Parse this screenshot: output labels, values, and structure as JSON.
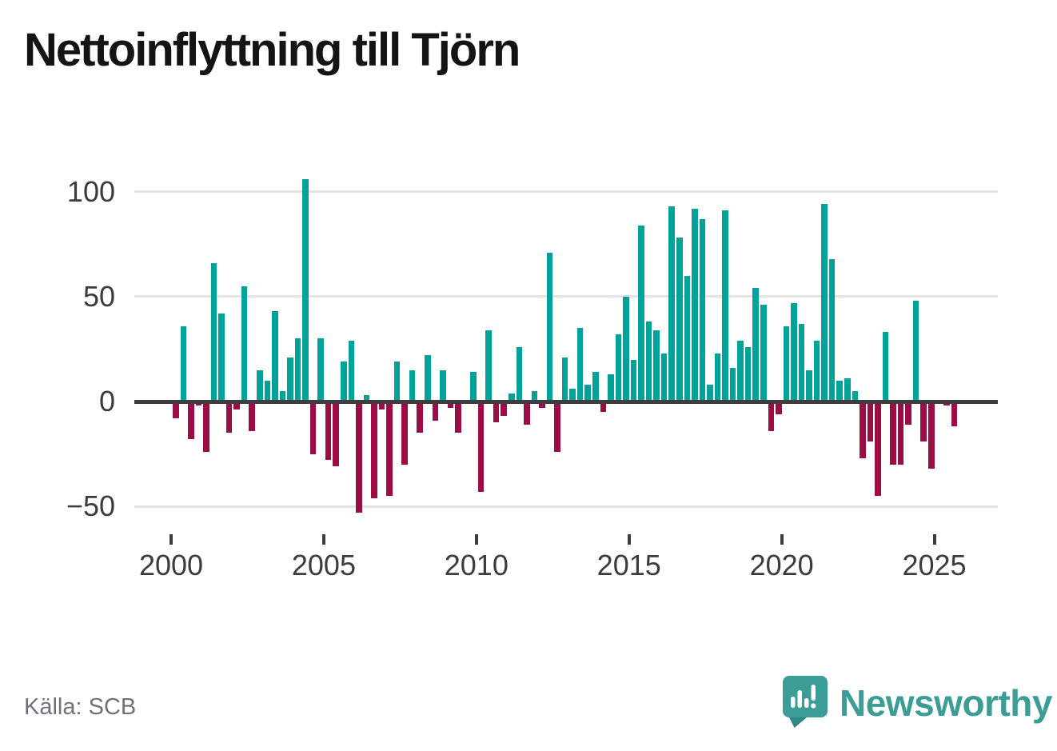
{
  "title": "Nettoinflyttning till Tjörn",
  "source": "Källa: SCB",
  "brand": {
    "name": "Newsworthy",
    "color": "#3c9d97"
  },
  "colors": {
    "positive_bar": "#00a29a",
    "negative_bar": "#9c0d46",
    "gridline": "#e3e3e3",
    "zero_line": "#3d3d3d",
    "axis_text": "#3c3c3c",
    "title_text": "#141414",
    "source_text": "#70707a"
  },
  "chart_data": {
    "type": "bar",
    "title": "Nettoinflyttning till Tjörn",
    "xlabel": "",
    "ylabel": "",
    "x_unit": "quarter",
    "grid": "horizontal",
    "legend": "none",
    "ylim": [
      -60,
      110
    ],
    "yticks": [
      {
        "label": "100",
        "value": 100
      },
      {
        "label": "50",
        "value": 50
      },
      {
        "label": "0",
        "value": 0
      },
      {
        "label": "−50",
        "value": -50
      }
    ],
    "xticks": [
      {
        "label": "2000",
        "year": 2000
      },
      {
        "label": "2005",
        "year": 2005
      },
      {
        "label": "2010",
        "year": 2010
      },
      {
        "label": "2015",
        "year": 2015
      },
      {
        "label": "2020",
        "year": 2020
      },
      {
        "label": "2025",
        "year": 2025
      }
    ],
    "categories": [
      "2000Q1",
      "2000Q2",
      "2000Q3",
      "2000Q4",
      "2001Q1",
      "2001Q2",
      "2001Q3",
      "2001Q4",
      "2002Q1",
      "2002Q2",
      "2002Q3",
      "2002Q4",
      "2003Q1",
      "2003Q2",
      "2003Q3",
      "2003Q4",
      "2004Q1",
      "2004Q2",
      "2004Q3",
      "2004Q4",
      "2005Q1",
      "2005Q2",
      "2005Q3",
      "2005Q4",
      "2006Q1",
      "2006Q2",
      "2006Q3",
      "2006Q4",
      "2007Q1",
      "2007Q2",
      "2007Q3",
      "2007Q4",
      "2008Q1",
      "2008Q2",
      "2008Q3",
      "2008Q4",
      "2009Q1",
      "2009Q2",
      "2009Q3",
      "2009Q4",
      "2010Q1",
      "2010Q2",
      "2010Q3",
      "2010Q4",
      "2011Q1",
      "2011Q2",
      "2011Q3",
      "2011Q4",
      "2012Q1",
      "2012Q2",
      "2012Q3",
      "2012Q4",
      "2013Q1",
      "2013Q2",
      "2013Q3",
      "2013Q4",
      "2014Q1",
      "2014Q2",
      "2014Q3",
      "2014Q4",
      "2015Q1",
      "2015Q2",
      "2015Q3",
      "2015Q4",
      "2016Q1",
      "2016Q2",
      "2016Q3",
      "2016Q4",
      "2017Q1",
      "2017Q2",
      "2017Q3",
      "2017Q4",
      "2018Q1",
      "2018Q2",
      "2018Q3",
      "2018Q4",
      "2019Q1",
      "2019Q2",
      "2019Q3",
      "2019Q4",
      "2020Q1",
      "2020Q2",
      "2020Q3",
      "2020Q4",
      "2021Q1",
      "2021Q2",
      "2021Q3",
      "2021Q4",
      "2022Q1",
      "2022Q2",
      "2022Q3",
      "2022Q4",
      "2023Q1",
      "2023Q2",
      "2023Q3",
      "2023Q4",
      "2024Q1",
      "2024Q2",
      "2024Q3",
      "2024Q4",
      "2025Q1",
      "2025Q2",
      "2025Q3"
    ],
    "values": [
      -8,
      36,
      -18,
      -2,
      -24,
      66,
      42,
      -15,
      -4,
      55,
      -14,
      15,
      10,
      43,
      5,
      21,
      30,
      106,
      -25,
      30,
      -28,
      -31,
      19,
      29,
      -53,
      3,
      -46,
      -4,
      -45,
      19,
      -30,
      15,
      -15,
      22,
      -9,
      15,
      -3,
      -15,
      0,
      14,
      -43,
      34,
      -10,
      -7,
      4,
      26,
      -11,
      5,
      -3,
      71,
      -24,
      21,
      6,
      35,
      8,
      14,
      -5,
      13,
      32,
      50,
      20,
      84,
      38,
      34,
      23,
      93,
      78,
      60,
      92,
      87,
      8,
      23,
      91,
      16,
      29,
      26,
      54,
      46,
      -14,
      -6,
      36,
      47,
      37,
      15,
      29,
      94,
      68,
      10,
      11,
      5,
      -27,
      -19,
      -45,
      33,
      -30,
      -30,
      -11,
      48,
      -19,
      -32,
      0,
      -2,
      -12
    ]
  }
}
